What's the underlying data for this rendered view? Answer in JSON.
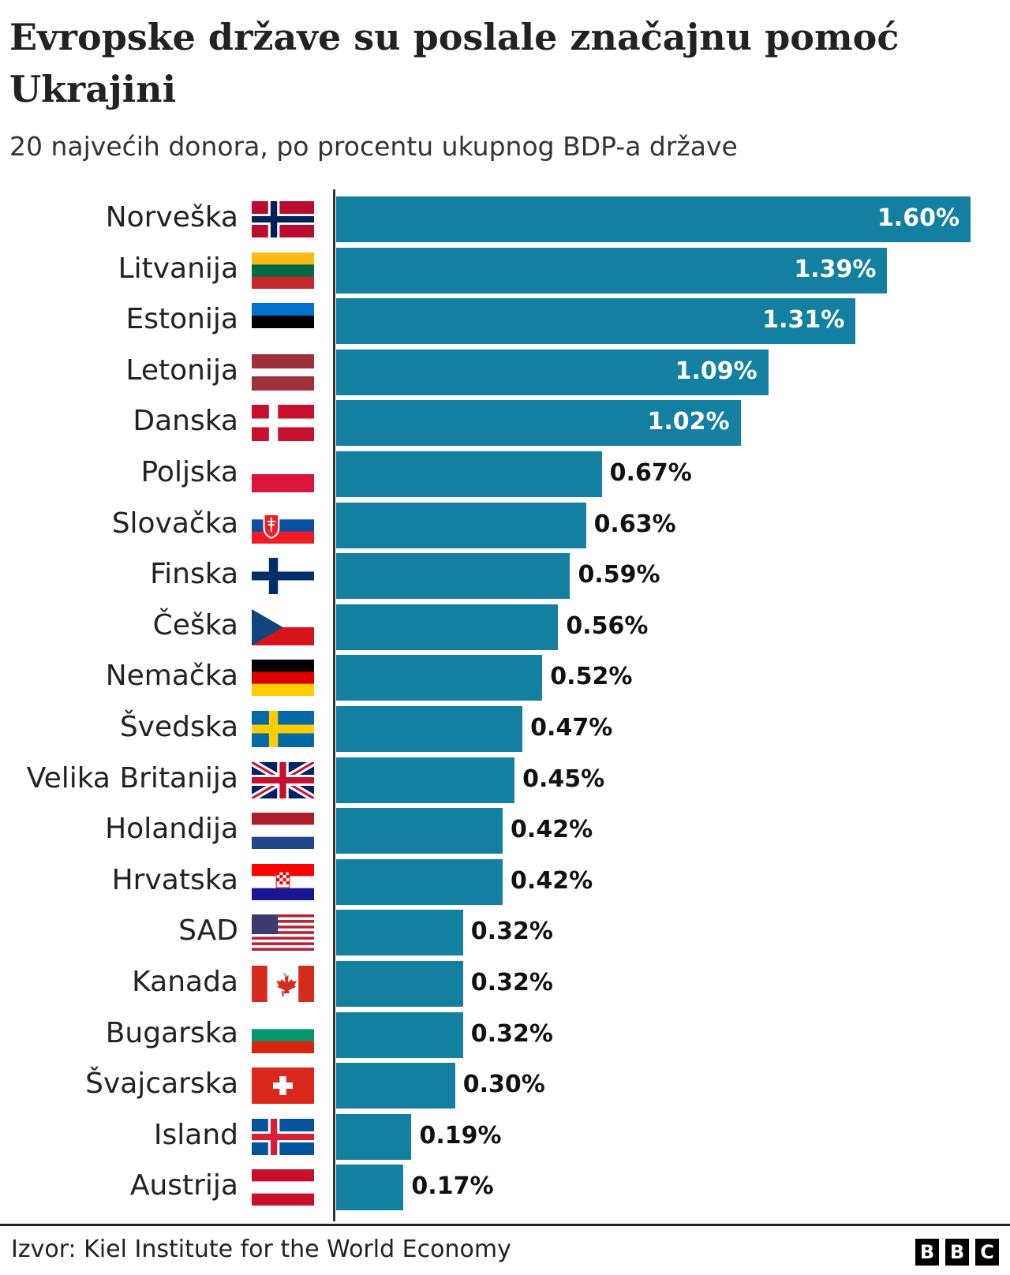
{
  "chart_data": {
    "type": "bar",
    "orientation": "horizontal",
    "title": "Evropske države su poslale značajnu pomoć Ukrajini",
    "subtitle": "20 najvećih donora, po procentu ukupnog BDP-a države",
    "categories": [
      "Norveška",
      "Litvanija",
      "Estonija",
      "Letonija",
      "Danska",
      "Poljska",
      "Slovačka",
      "Finska",
      "Češka",
      "Nemačka",
      "Švedska",
      "Velika Britanija",
      "Holandija",
      "Hrvatska",
      "SAD",
      "Kanada",
      "Bugarska",
      "Švajcarska",
      "Island",
      "Austrija"
    ],
    "flags": [
      "norway-flag",
      "lithuania-flag",
      "estonia-flag",
      "latvia-flag",
      "denmark-flag",
      "poland-flag",
      "slovakia-flag",
      "finland-flag",
      "czechia-flag",
      "germany-flag",
      "sweden-flag",
      "uk-flag",
      "netherlands-flag",
      "croatia-flag",
      "usa-flag",
      "canada-flag",
      "bulgaria-flag",
      "switzerland-flag",
      "iceland-flag",
      "austria-flag"
    ],
    "values": [
      1.6,
      1.39,
      1.31,
      1.09,
      1.02,
      0.67,
      0.63,
      0.59,
      0.56,
      0.52,
      0.47,
      0.45,
      0.42,
      0.42,
      0.32,
      0.32,
      0.32,
      0.3,
      0.19,
      0.17
    ],
    "labels": [
      "1.60%",
      "1.39%",
      "1.31%",
      "1.09%",
      "1.02%",
      "0.67%",
      "0.63%",
      "0.59%",
      "0.56%",
      "0.52%",
      "0.47%",
      "0.45%",
      "0.42%",
      "0.42%",
      "0.32%",
      "0.32%",
      "0.32%",
      "0.30%",
      "0.19%",
      "0.17%"
    ],
    "xlabel": "",
    "ylabel": "",
    "xlim": [
      0,
      1.65
    ],
    "grid": false,
    "bar_color": "#1380a1"
  },
  "footer": {
    "source": "Izvor: Kiel Institute for the World Economy",
    "logo": [
      "B",
      "B",
      "C"
    ]
  }
}
